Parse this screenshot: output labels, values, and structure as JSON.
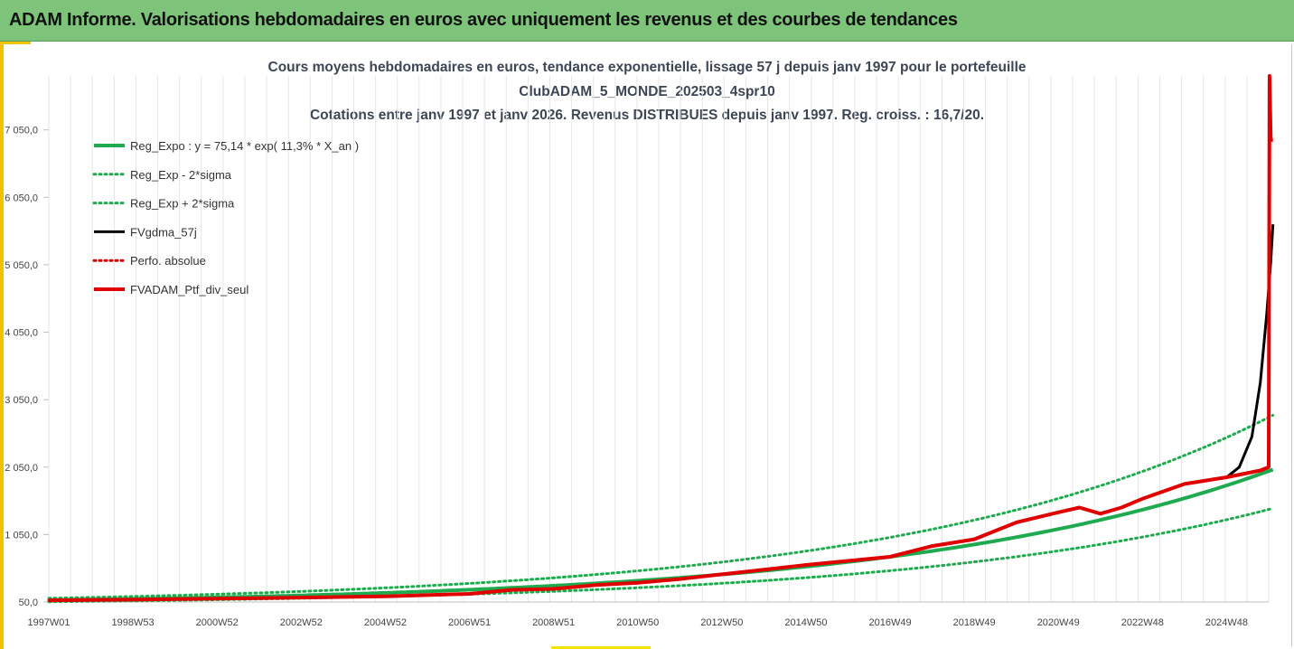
{
  "header": {
    "title": "ADAM Informe. Valorisations hebdomadaires en euros avec uniquement les revenus et des courbes de tendances"
  },
  "chart_data": {
    "type": "line",
    "title_lines": [
      "Cours moyens hebdomadaires  en euros, tendance exponentielle, lissage 57 j depuis janv 1997 pour le portefeuille",
      "ClubADAM_5_MONDE_202503_4spr10",
      "Cotations entre janv 1997 et janv 2026. Revenus DISTRIBUES depuis janv 1997. Reg. croiss. : 16,7/20."
    ],
    "x_tick_labels": [
      "1997W01",
      "1998W53",
      "2000W52",
      "2002W52",
      "2004W52",
      "2006W51",
      "2008W51",
      "2010W50",
      "2012W50",
      "2014W50",
      "2016W49",
      "2018W49",
      "2020W49",
      "2022W48",
      "2024W48"
    ],
    "x_range_years": [
      1997,
      2026
    ],
    "ylim": [
      50,
      7850
    ],
    "y_ticks": [
      50,
      1050,
      2050,
      3050,
      4050,
      5050,
      6050,
      7050
    ],
    "y_tick_labels": [
      "50,0",
      "1 050,0",
      "2 050,0",
      "3 050,0",
      "4 050,0",
      "5 050,0",
      "6 050,0",
      "7 050,0"
    ],
    "grid": "vertical",
    "legend_position": "top-left",
    "regression": {
      "a": 75.14,
      "rate": 0.113,
      "sigma_factor": 1.4
    },
    "series": [
      {
        "name": "Reg_Expo : y = 75,14 * exp( 11,3% *  X_an )",
        "color": "#1faa50",
        "style": "solid",
        "width": 4
      },
      {
        "name": "Reg_Exp - 2*sigma",
        "color": "#1faa50",
        "style": "dotted",
        "width": 3
      },
      {
        "name": "Reg_Exp + 2*sigma",
        "color": "#1faa50",
        "style": "dotted",
        "width": 3
      },
      {
        "name": "FVgdma_57j",
        "color": "#000000",
        "style": "solid",
        "width": 3,
        "points": [
          [
            1997,
            75
          ],
          [
            1999,
            85
          ],
          [
            2001,
            100
          ],
          [
            2003,
            115
          ],
          [
            2005,
            135
          ],
          [
            2007,
            170
          ],
          [
            2008,
            230
          ],
          [
            2009,
            245
          ],
          [
            2010,
            300
          ],
          [
            2011,
            335
          ],
          [
            2012,
            390
          ],
          [
            2013,
            460
          ],
          [
            2014,
            530
          ],
          [
            2015,
            600
          ],
          [
            2016,
            660
          ],
          [
            2017,
            720
          ],
          [
            2018,
            880
          ],
          [
            2019,
            980
          ],
          [
            2020,
            1230
          ],
          [
            2021,
            1380
          ],
          [
            2021.5,
            1450
          ],
          [
            2022,
            1360
          ],
          [
            2022.5,
            1450
          ],
          [
            2023,
            1580
          ],
          [
            2024,
            1800
          ],
          [
            2025,
            1900
          ],
          [
            2025.3,
            2050
          ],
          [
            2025.6,
            2500
          ],
          [
            2025.8,
            3300
          ],
          [
            2025.95,
            4300
          ],
          [
            2026.05,
            5100
          ],
          [
            2026.1,
            5650
          ]
        ]
      },
      {
        "name": "Perfo. absolue",
        "color": "#e00000",
        "style": "dotted",
        "width": 3,
        "points": [
          [
            1997,
            75
          ],
          [
            1999,
            85
          ],
          [
            2001,
            100
          ],
          [
            2003,
            115
          ],
          [
            2005,
            135
          ],
          [
            2007,
            170
          ],
          [
            2008,
            230
          ],
          [
            2009,
            245
          ],
          [
            2010,
            300
          ],
          [
            2011,
            335
          ],
          [
            2012,
            390
          ],
          [
            2013,
            460
          ],
          [
            2014,
            530
          ],
          [
            2015,
            600
          ],
          [
            2016,
            660
          ],
          [
            2017,
            720
          ],
          [
            2018,
            880
          ],
          [
            2019,
            980
          ],
          [
            2020,
            1230
          ],
          [
            2021,
            1380
          ],
          [
            2021.5,
            1450
          ],
          [
            2022,
            1360
          ],
          [
            2022.5,
            1450
          ],
          [
            2023,
            1580
          ],
          [
            2024,
            1800
          ],
          [
            2025,
            1900
          ],
          [
            2025.8,
            2000
          ],
          [
            2026.0,
            2050
          ]
        ]
      },
      {
        "name": "FVADAM_Ptf_div_seul",
        "color": "#e00000",
        "style": "solid",
        "width": 4,
        "points": [
          [
            1997,
            75
          ],
          [
            1999,
            85
          ],
          [
            2001,
            100
          ],
          [
            2003,
            115
          ],
          [
            2005,
            135
          ],
          [
            2007,
            170
          ],
          [
            2008,
            230
          ],
          [
            2009,
            245
          ],
          [
            2010,
            300
          ],
          [
            2011,
            335
          ],
          [
            2012,
            390
          ],
          [
            2013,
            460
          ],
          [
            2014,
            530
          ],
          [
            2015,
            600
          ],
          [
            2016,
            660
          ],
          [
            2017,
            720
          ],
          [
            2018,
            880
          ],
          [
            2019,
            980
          ],
          [
            2020,
            1230
          ],
          [
            2021,
            1380
          ],
          [
            2021.5,
            1450
          ],
          [
            2022,
            1360
          ],
          [
            2022.5,
            1450
          ],
          [
            2023,
            1580
          ],
          [
            2024,
            1800
          ],
          [
            2025,
            1900
          ],
          [
            2025.8,
            2000
          ],
          [
            2026.0,
            2050
          ],
          [
            2026.02,
            7850
          ],
          [
            2026.05,
            6900
          ],
          [
            2026.1,
            6900
          ]
        ]
      }
    ]
  }
}
